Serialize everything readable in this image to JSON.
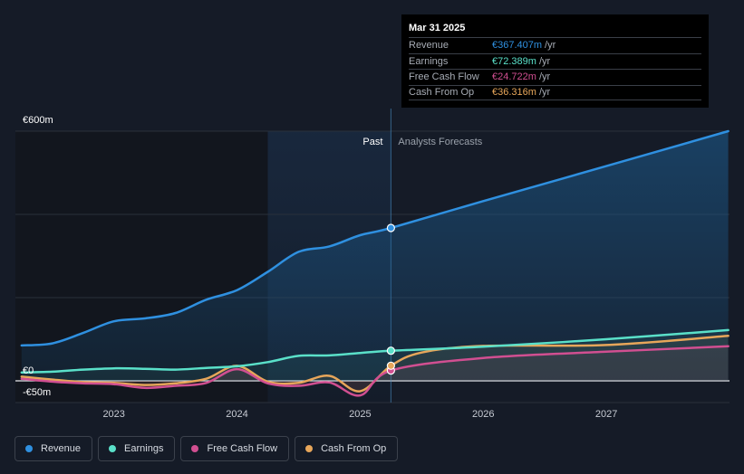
{
  "chart_data": {
    "type": "line",
    "x_range": [
      2022.2,
      2028.0
    ],
    "y_range": [
      -80,
      600
    ],
    "y_labels": [
      {
        "text": "€600m",
        "value": 600
      },
      {
        "text": "€0",
        "value": 0
      },
      {
        "text": "-€50m",
        "value": -50
      }
    ],
    "x_ticks": [
      {
        "label": "2023",
        "value": 2023.0
      },
      {
        "label": "2024",
        "value": 2024.0
      },
      {
        "label": "2025",
        "value": 2025.0
      },
      {
        "label": "2026",
        "value": 2026.0
      },
      {
        "label": "2027",
        "value": 2027.0
      }
    ],
    "gridlines": [
      600,
      400,
      200,
      0
    ],
    "past_label": "Past",
    "forecast_label": "Analysts Forecasts",
    "divider_x": 2025.25,
    "past_shade_start": 2024.25,
    "series": [
      {
        "name": "Revenue",
        "color": "#2f90e0",
        "points": [
          [
            2022.25,
            85
          ],
          [
            2022.5,
            90
          ],
          [
            2022.75,
            115
          ],
          [
            2023.0,
            143
          ],
          [
            2023.25,
            150
          ],
          [
            2023.5,
            163
          ],
          [
            2023.75,
            195
          ],
          [
            2024.0,
            218
          ],
          [
            2024.25,
            262
          ],
          [
            2024.5,
            310
          ],
          [
            2024.75,
            323
          ],
          [
            2025.0,
            350
          ],
          [
            2025.25,
            367.407
          ],
          [
            2026.0,
            432
          ],
          [
            2027.0,
            516
          ],
          [
            2027.99,
            600
          ]
        ]
      },
      {
        "name": "Earnings",
        "color": "#5ae0c9",
        "points": [
          [
            2022.25,
            20
          ],
          [
            2022.5,
            22
          ],
          [
            2022.75,
            27
          ],
          [
            2023.0,
            30
          ],
          [
            2023.25,
            29
          ],
          [
            2023.5,
            27
          ],
          [
            2023.75,
            31
          ],
          [
            2024.0,
            35
          ],
          [
            2024.25,
            45
          ],
          [
            2024.5,
            60
          ],
          [
            2024.75,
            61
          ],
          [
            2025.0,
            67
          ],
          [
            2025.25,
            72.389
          ],
          [
            2026.0,
            82
          ],
          [
            2027.0,
            100
          ],
          [
            2027.99,
            122
          ]
        ]
      },
      {
        "name": "Free Cash Flow",
        "color": "#d14f91",
        "points": [
          [
            2022.25,
            5
          ],
          [
            2022.5,
            -2
          ],
          [
            2022.75,
            -6
          ],
          [
            2023.0,
            -8
          ],
          [
            2023.25,
            -17
          ],
          [
            2023.5,
            -12
          ],
          [
            2023.75,
            -5
          ],
          [
            2024.0,
            28
          ],
          [
            2024.25,
            -6
          ],
          [
            2024.5,
            -12
          ],
          [
            2024.75,
            -4
          ],
          [
            2025.0,
            -35
          ],
          [
            2025.25,
            24.722
          ],
          [
            2026.0,
            55
          ],
          [
            2027.0,
            70
          ],
          [
            2027.99,
            83
          ]
        ]
      },
      {
        "name": "Cash From Op",
        "color": "#e7a65a",
        "points": [
          [
            2022.25,
            10
          ],
          [
            2022.5,
            3
          ],
          [
            2022.75,
            -3
          ],
          [
            2023.0,
            -5
          ],
          [
            2023.25,
            -10
          ],
          [
            2023.5,
            -6
          ],
          [
            2023.75,
            5
          ],
          [
            2024.0,
            36
          ],
          [
            2024.25,
            -2
          ],
          [
            2024.5,
            -5
          ],
          [
            2024.75,
            12
          ],
          [
            2025.0,
            -25
          ],
          [
            2025.25,
            36.316
          ],
          [
            2025.5,
            68
          ],
          [
            2026.0,
            84
          ],
          [
            2027.0,
            86
          ],
          [
            2027.99,
            108
          ]
        ]
      }
    ]
  },
  "tooltip": {
    "date": "Mar 31 2025",
    "unit": "/yr",
    "rows": [
      {
        "label": "Revenue",
        "value": "€367.407m",
        "color": "#2f90e0"
      },
      {
        "label": "Earnings",
        "value": "€72.389m",
        "color": "#5ae0c9"
      },
      {
        "label": "Free Cash Flow",
        "value": "€24.722m",
        "color": "#d14f91"
      },
      {
        "label": "Cash From Op",
        "value": "€36.316m",
        "color": "#e7a65a"
      }
    ]
  },
  "legend": [
    {
      "label": "Revenue",
      "color": "#2f90e0"
    },
    {
      "label": "Earnings",
      "color": "#5ae0c9"
    },
    {
      "label": "Free Cash Flow",
      "color": "#d14f91"
    },
    {
      "label": "Cash From Op",
      "color": "#e7a65a"
    }
  ]
}
